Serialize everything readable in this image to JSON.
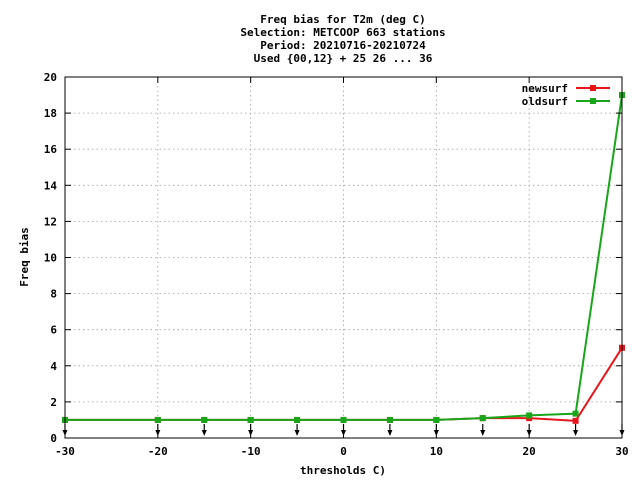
{
  "chart_data": {
    "type": "line",
    "title_lines": [
      "Freq bias  for T2m (deg C)",
      "Selection: METCOOP    663 stations",
      "Period: 20210716-20210724",
      "Used {00,12} + 25 26 ... 36"
    ],
    "xlabel": "thresholds C)",
    "ylabel": "Freq bias",
    "xlim": [
      -30,
      30
    ],
    "ylim": [
      0,
      20
    ],
    "xticks": [
      -30,
      -20,
      -10,
      0,
      10,
      20,
      30
    ],
    "yticks": [
      0,
      2,
      4,
      6,
      8,
      10,
      12,
      14,
      16,
      18,
      20
    ],
    "x": [
      -30,
      -20,
      -15,
      -10,
      -5,
      0,
      5,
      10,
      15,
      20,
      25,
      30
    ],
    "marker_x": [
      -30,
      -20,
      -15,
      -10,
      -5,
      0,
      5,
      10,
      15,
      20,
      25,
      30
    ],
    "grid": true,
    "legend_position": "top-right",
    "series": [
      {
        "name": "newsurf",
        "color": "#e8151b",
        "values": [
          1.0,
          1.0,
          1.0,
          1.0,
          1.0,
          1.0,
          1.0,
          1.0,
          1.1,
          1.1,
          0.95,
          5.0
        ]
      },
      {
        "name": "oldsurf",
        "color": "#1aa61a",
        "values": [
          1.0,
          1.0,
          1.0,
          1.0,
          1.0,
          1.0,
          1.0,
          1.0,
          1.1,
          1.25,
          1.35,
          19.0
        ]
      }
    ]
  }
}
